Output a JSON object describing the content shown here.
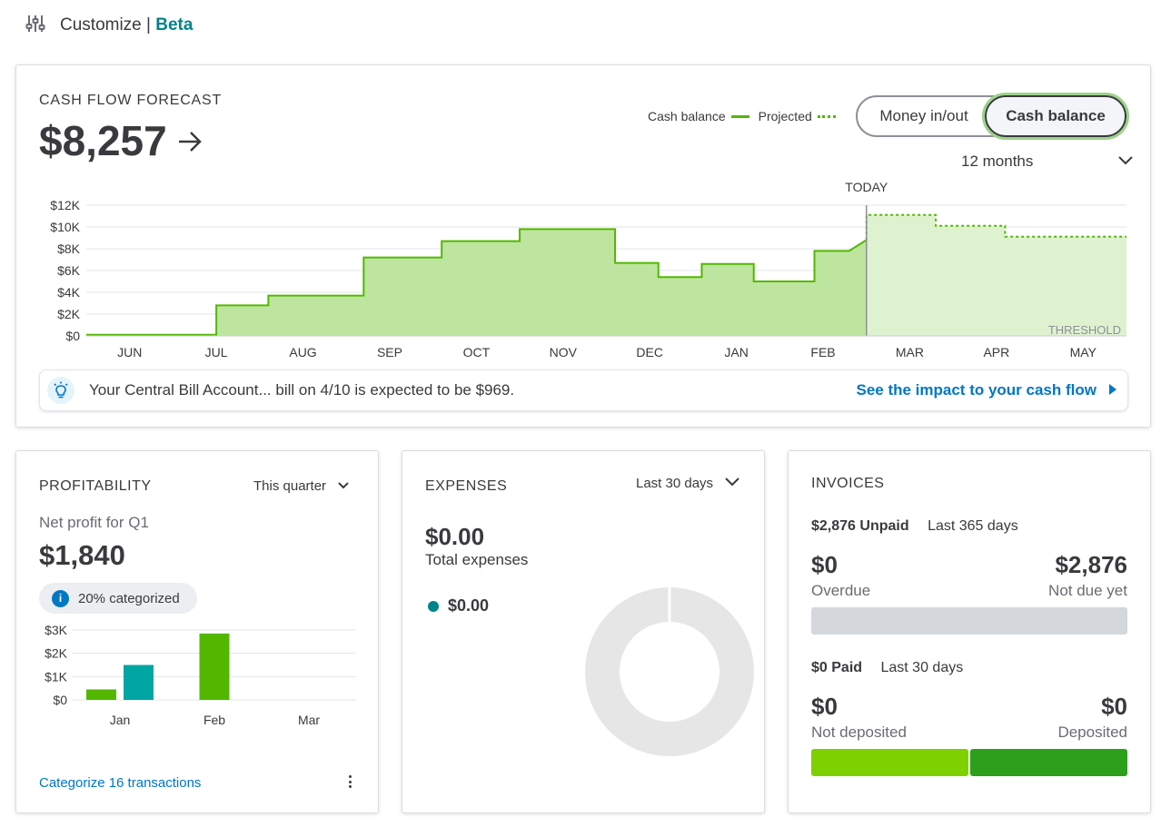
{
  "header": {
    "title": "Customize",
    "separator": "|",
    "badge": "Beta"
  },
  "cash_flow": {
    "title": "CASH FLOW FORECAST",
    "amount": "$8,257",
    "legend_balance": "Cash balance",
    "legend_projected": "Projected",
    "toggle_money": "Money in/out",
    "toggle_balance": "Cash balance",
    "range": "12 months",
    "today_label": "TODAY",
    "threshold_label": "THRESHOLD",
    "banner_text": "Your Central Bill Account... bill on 4/10 is expected to be $969.",
    "banner_link": "See the impact to your cash flow",
    "colors": {
      "actual_fill": "#bde5a0",
      "actual_line": "#53b700",
      "projected_fill": "#def2d0"
    }
  },
  "profitability": {
    "title": "PROFITABILITY",
    "range": "This quarter",
    "subtitle": "Net profit for Q1",
    "amount": "$1,840",
    "categorized": "20% categorized",
    "link": "Categorize 16 transactions"
  },
  "expenses": {
    "title": "EXPENSES",
    "range": "Last 30 days",
    "amount": "$0.00",
    "subtitle": "Total expenses",
    "legend_value": "$0.00"
  },
  "invoices": {
    "title": "INVOICES",
    "unpaid_amount": "$2,876 Unpaid",
    "unpaid_range": "Last 365 days",
    "overdue_value": "$0",
    "overdue_label": "Overdue",
    "notdue_value": "$2,876",
    "notdue_label": "Not due yet",
    "paid_amount": "$0 Paid",
    "paid_range": "Last 30 days",
    "notdeposited_value": "$0",
    "notdeposited_label": "Not deposited",
    "deposited_value": "$0",
    "deposited_label": "Deposited"
  },
  "chart_data": [
    {
      "type": "area",
      "name": "cash-flow-forecast",
      "y_ticks": [
        "$12K",
        "$10K",
        "$8K",
        "$6K",
        "$4K",
        "$2K",
        "$0"
      ],
      "ylim": [
        0,
        12000
      ],
      "categories": [
        "JUN",
        "JUL",
        "AUG",
        "SEP",
        "OCT",
        "NOV",
        "DEC",
        "JAN",
        "FEB",
        "MAR",
        "APR",
        "MAY"
      ],
      "today_index": 8.5,
      "series": [
        {
          "style": "solid",
          "points": [
            [
              0,
              100
            ],
            [
              1,
              100
            ],
            [
              1,
              2800
            ],
            [
              1.6,
              2800
            ],
            [
              1.6,
              3700
            ],
            [
              2.7,
              3700
            ],
            [
              2.7,
              7200
            ],
            [
              3.6,
              7200
            ],
            [
              3.6,
              8700
            ],
            [
              4.5,
              8700
            ],
            [
              4.5,
              9800
            ],
            [
              5.6,
              9800
            ],
            [
              5.6,
              6700
            ],
            [
              6.1,
              6700
            ],
            [
              6.1,
              5400
            ],
            [
              6.6,
              5400
            ],
            [
              6.6,
              6600
            ],
            [
              7.2,
              6600
            ],
            [
              7.2,
              5000
            ],
            [
              7.9,
              5000
            ],
            [
              7.9,
              7800
            ],
            [
              8.3,
              7800
            ],
            [
              8.5,
              8800
            ]
          ]
        },
        {
          "style": "dotted",
          "points": [
            [
              8.5,
              8800
            ],
            [
              8.5,
              11100
            ],
            [
              9.3,
              11100
            ],
            [
              9.3,
              10100
            ],
            [
              10.1,
              10100
            ],
            [
              10.1,
              9100
            ],
            [
              11,
              9100
            ]
          ]
        }
      ]
    },
    {
      "type": "bar",
      "name": "profitability",
      "categories": [
        "Jan",
        "Feb",
        "Mar"
      ],
      "y_ticks": [
        "$3K",
        "$2K",
        "$1K",
        "$0"
      ],
      "ylim": [
        0,
        3000
      ],
      "bars": [
        {
          "category": 0,
          "offset": -1,
          "value": 450,
          "color": "#53b700"
        },
        {
          "category": 0,
          "offset": 1,
          "value": 1500,
          "color": "#00a6a4"
        },
        {
          "category": 1,
          "offset": 0,
          "value": 2850,
          "color": "#53b700"
        }
      ]
    },
    {
      "type": "pie",
      "name": "expenses-donut",
      "values": [
        0
      ],
      "colors": [
        "#e6e6e6"
      ]
    }
  ]
}
